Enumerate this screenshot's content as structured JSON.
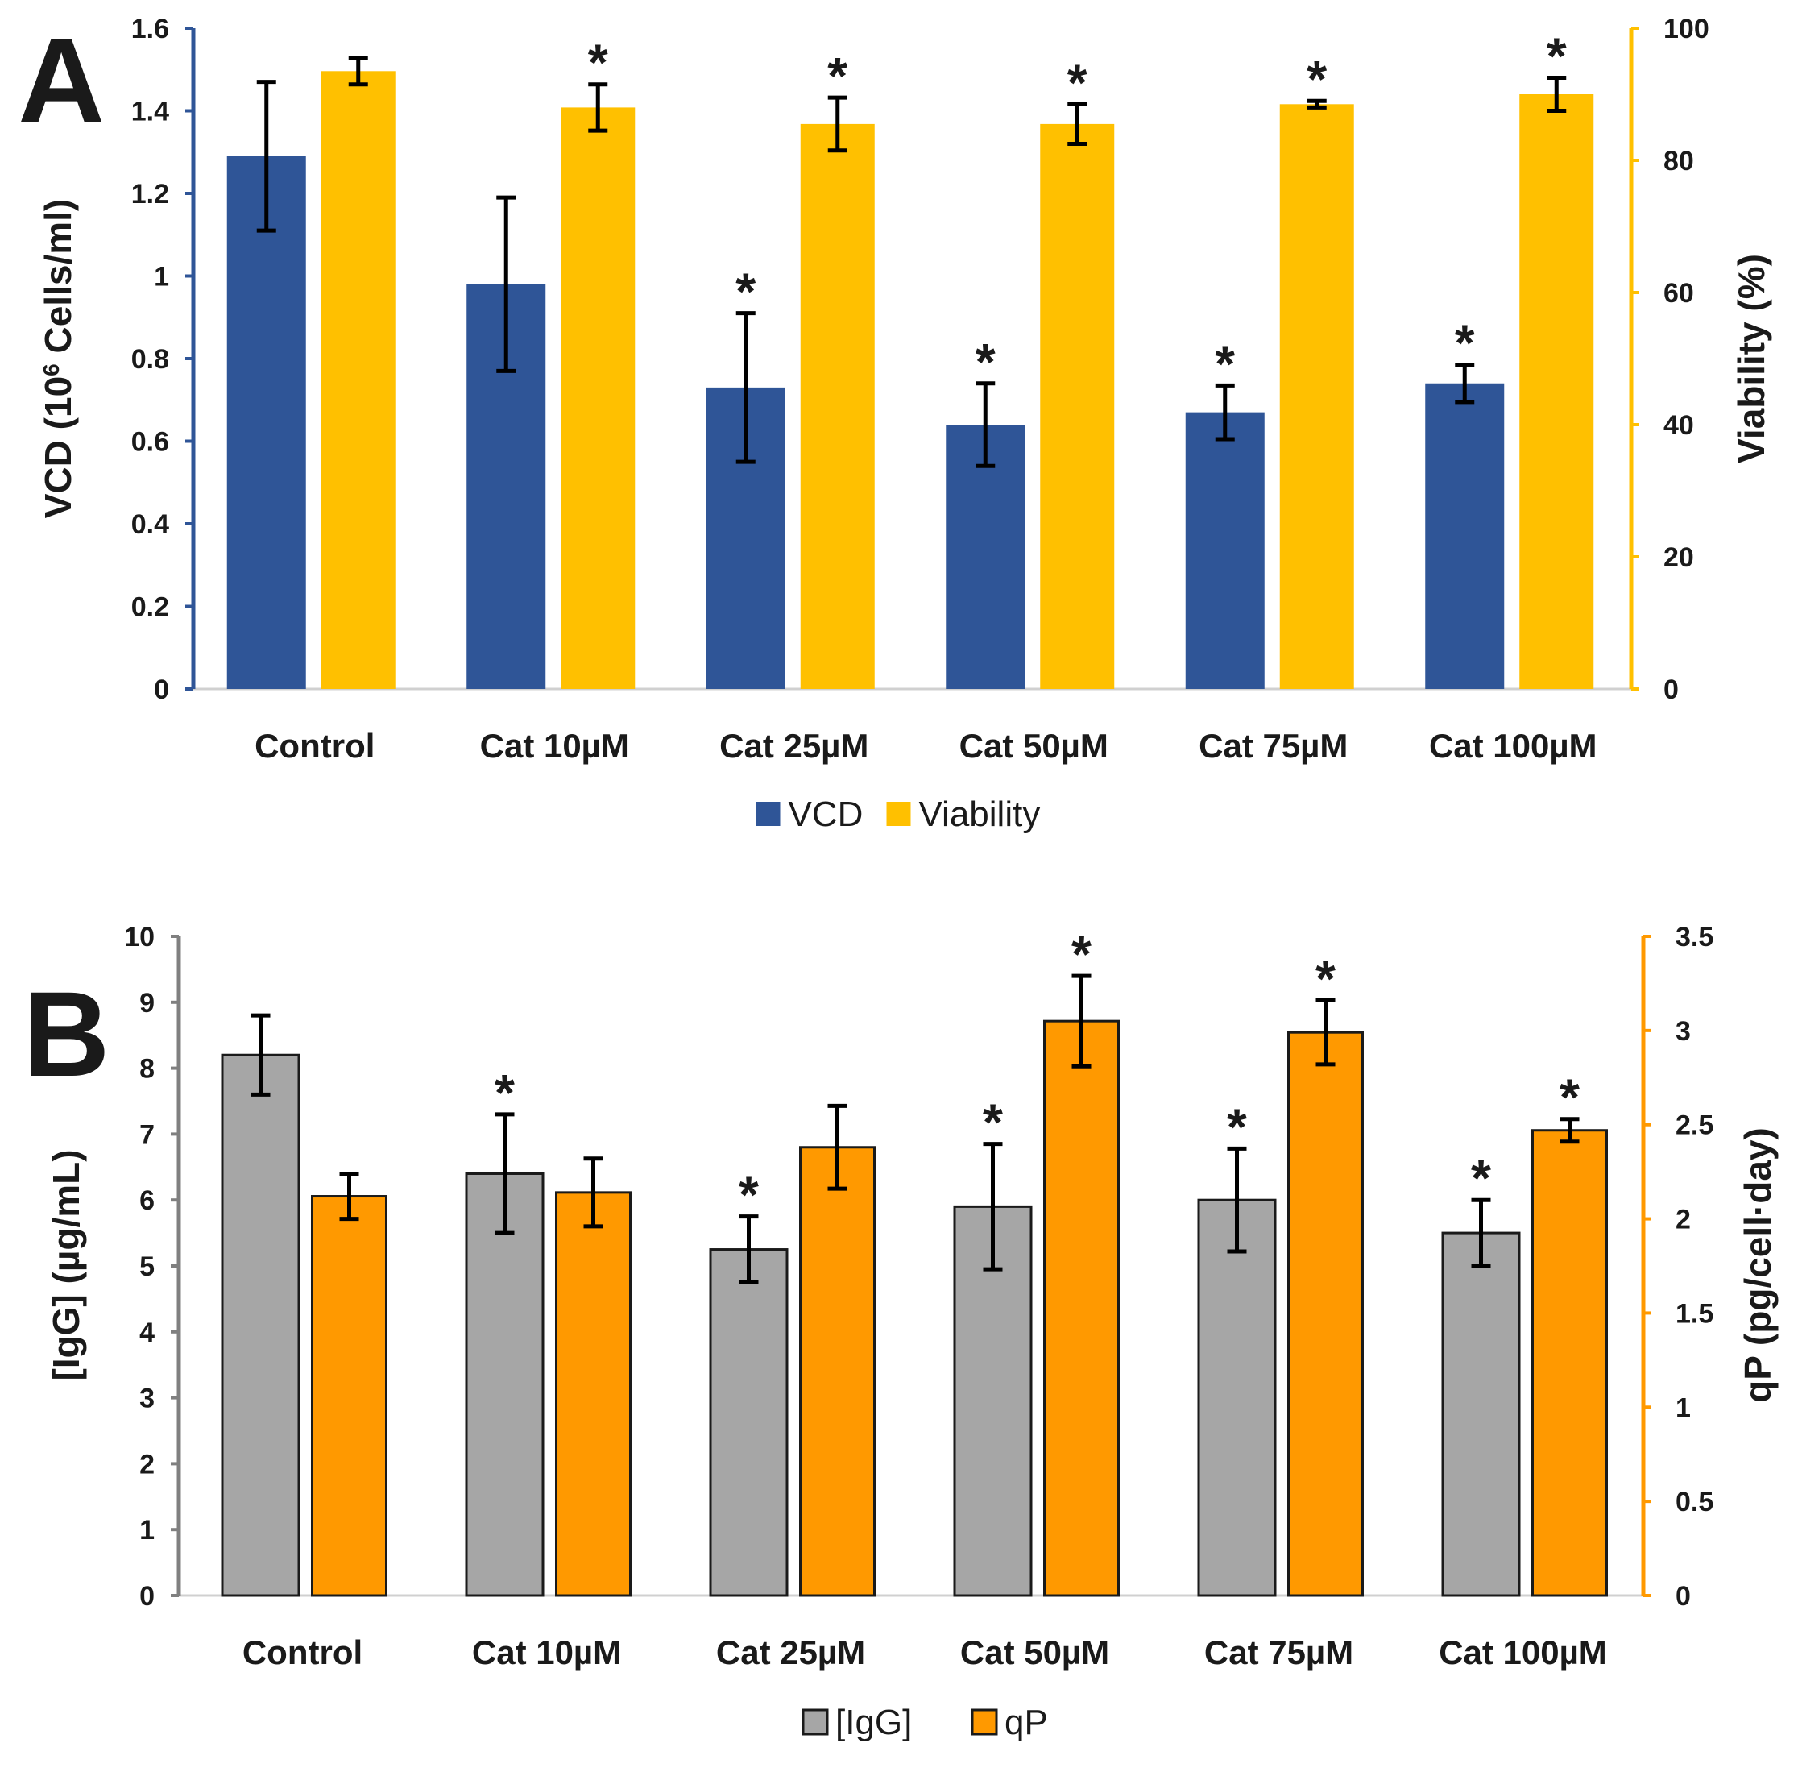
{
  "chart_data": [
    {
      "panel": "A",
      "type": "bar",
      "categories": [
        "Control",
        "Cat 10µM",
        "Cat 25µM",
        "Cat 50µM",
        "Cat 75µM",
        "Cat 100µM"
      ],
      "series": [
        {
          "name": "VCD",
          "axis": "left",
          "color": "#2f5597",
          "values": [
            1.29,
            0.98,
            0.73,
            0.64,
            0.67,
            0.74
          ],
          "errors": [
            0.18,
            0.21,
            0.18,
            0.1,
            0.065,
            0.045
          ],
          "significant": [
            false,
            false,
            true,
            true,
            true,
            true
          ]
        },
        {
          "name": "Viability",
          "axis": "right",
          "color": "#ffc000",
          "values": [
            93.5,
            88,
            85.5,
            85.5,
            88.5,
            90
          ],
          "errors": [
            2,
            3.5,
            4,
            3,
            0.5,
            2.5
          ],
          "significant": [
            false,
            true,
            true,
            true,
            true,
            true
          ]
        }
      ],
      "ylabel": "VCD (10",
      "ylabel_sup": "6",
      "ylabel_tail": " Cells/ml)",
      "y2label": "Viability (%)",
      "ylim": [
        0,
        1.6
      ],
      "yticks": [
        "0",
        "0.2",
        "0.4",
        "0.6",
        "0.8",
        "1",
        "1.2",
        "1.4",
        "1.6"
      ],
      "y2lim": [
        0,
        100
      ],
      "y2ticks": [
        "0",
        "20",
        "40",
        "60",
        "80",
        "100"
      ],
      "left_axis_color": "#2f5597",
      "right_axis_color": "#ffc000",
      "legend": [
        "VCD",
        "Viability"
      ],
      "legend_position": "bottom-center",
      "significance_marker": "*"
    },
    {
      "panel": "B",
      "type": "bar",
      "categories": [
        "Control",
        "Cat 10µM",
        "Cat 25µM",
        "Cat 50µM",
        "Cat 75µM",
        "Cat 100µM"
      ],
      "series": [
        {
          "name": "[IgG]",
          "axis": "left",
          "color": "#a6a6a6",
          "values": [
            8.2,
            6.4,
            5.25,
            5.9,
            6.0,
            5.5
          ],
          "errors": [
            0.6,
            0.9,
            0.5,
            0.95,
            0.78,
            0.5
          ],
          "significant": [
            false,
            true,
            true,
            true,
            true,
            true
          ]
        },
        {
          "name": "qP",
          "axis": "right",
          "color": "#ff9900",
          "values": [
            2.12,
            2.14,
            2.38,
            3.05,
            2.99,
            2.47
          ],
          "errors": [
            0.12,
            0.18,
            0.22,
            0.24,
            0.17,
            0.06
          ],
          "significant": [
            false,
            false,
            false,
            true,
            true,
            true
          ]
        }
      ],
      "ylabel": "[IgG] (µg/mL)",
      "y2label": "qP (pg/cell·day)",
      "ylim": [
        0,
        10
      ],
      "yticks": [
        "0",
        "1",
        "2",
        "3",
        "4",
        "5",
        "6",
        "7",
        "8",
        "9",
        "10"
      ],
      "y2lim": [
        0,
        3.5
      ],
      "y2ticks": [
        "0",
        "0.5",
        "1",
        "1.5",
        "2",
        "2.5",
        "3",
        "3.5"
      ],
      "left_axis_color": "#808080",
      "right_axis_color": "#ff9900",
      "legend": [
        "[IgG]",
        "qP"
      ],
      "legend_position": "bottom-center",
      "significance_marker": "*"
    }
  ]
}
